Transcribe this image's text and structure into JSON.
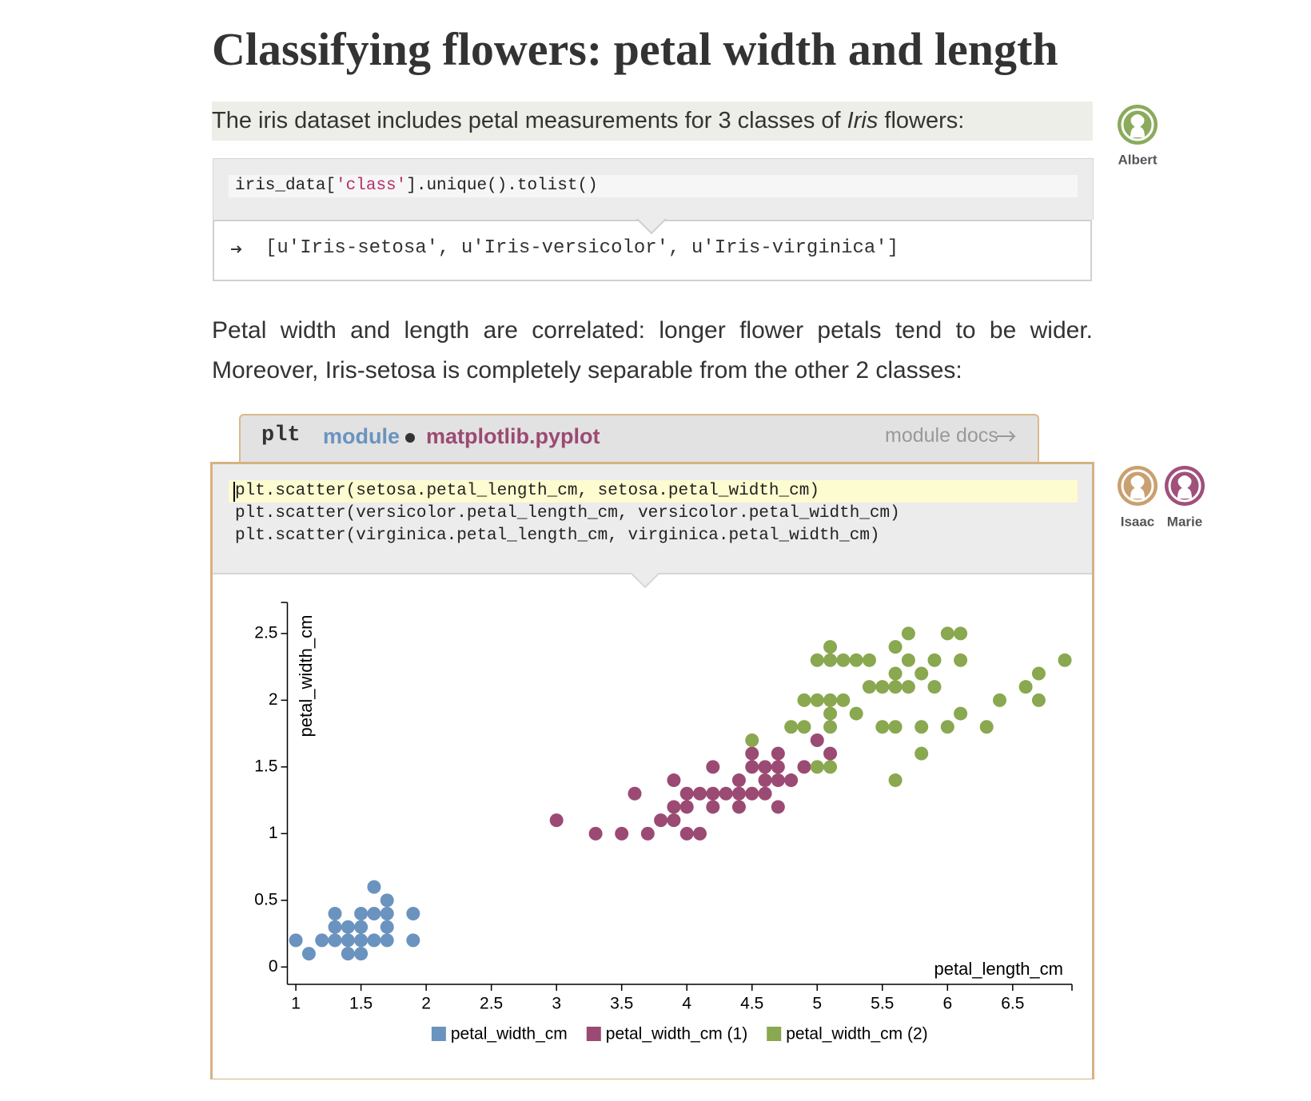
{
  "title": "Classifying flowers: petal width and length",
  "intro": {
    "before": "The iris dataset includes petal measurements for 3 classes of ",
    "emphasis": "Iris",
    "after": " flowers:"
  },
  "cell1": {
    "code": {
      "before": "iris_data[",
      "string": "'class'",
      "after": "].unique().tolist()"
    },
    "output": "[u'Iris-setosa', u'Iris-versicolor', u'Iris-virginica']"
  },
  "paragraph": "Petal width and length are correlated: longer flower petals tend to be wider. Moreover, Iris-setosa is completely separable from the other 2 classes:",
  "cell2": {
    "module_header": {
      "name": "plt",
      "kind": "module",
      "path": "matplotlib.pyplot",
      "docs": "module docs"
    },
    "code": [
      "plt.scatter(setosa.petal_length_cm, setosa.petal_width_cm)",
      "plt.scatter(versicolor.petal_length_cm, versicolor.petal_width_cm)",
      "plt.scatter(virginica.petal_length_cm, virginica.petal_width_cm)"
    ]
  },
  "collaborators": [
    {
      "name": "Albert",
      "color": "#8aab5b"
    },
    {
      "name": "Isaac",
      "color": "#c9a070"
    },
    {
      "name": "Marie",
      "color": "#a0507a"
    }
  ],
  "chart_data": {
    "type": "scatter",
    "xlabel": "petal_length_cm",
    "ylabel": "petal_width_cm",
    "xlim": [
      0.935,
      6.955
    ],
    "ylim": [
      -0.13,
      2.733
    ],
    "xticks": [
      1,
      1.5,
      2,
      2.5,
      3,
      3.5,
      4,
      4.5,
      5,
      5.5,
      6,
      6.5
    ],
    "yticks": [
      0,
      0.5,
      1,
      1.5,
      2,
      2.5
    ],
    "series": [
      {
        "name": "petal_width_cm",
        "color": "#6a93bf",
        "x": [
          1.0,
          1.1,
          1.2,
          1.3,
          1.3,
          1.3,
          1.4,
          1.4,
          1.4,
          1.5,
          1.5,
          1.5,
          1.5,
          1.6,
          1.6,
          1.6,
          1.7,
          1.7,
          1.7,
          1.7,
          1.9,
          1.9
        ],
        "values": [
          0.2,
          0.1,
          0.2,
          0.4,
          0.3,
          0.2,
          0.3,
          0.2,
          0.1,
          0.4,
          0.3,
          0.2,
          0.1,
          0.6,
          0.4,
          0.2,
          0.5,
          0.4,
          0.3,
          0.2,
          0.4,
          0.2
        ]
      },
      {
        "name": "petal_width_cm (1)",
        "color": "#9b4a73",
        "x": [
          3.0,
          3.3,
          3.5,
          3.6,
          3.7,
          3.8,
          3.9,
          3.9,
          3.9,
          4.0,
          4.0,
          4.0,
          4.1,
          4.1,
          4.2,
          4.2,
          4.2,
          4.3,
          4.4,
          4.4,
          4.4,
          4.5,
          4.5,
          4.5,
          4.6,
          4.6,
          4.6,
          4.7,
          4.7,
          4.7,
          4.7,
          4.8,
          4.9,
          5.0,
          5.1
        ],
        "values": [
          1.1,
          1.0,
          1.0,
          1.3,
          1.0,
          1.1,
          1.1,
          1.2,
          1.4,
          1.0,
          1.2,
          1.3,
          1.0,
          1.3,
          1.2,
          1.3,
          1.5,
          1.3,
          1.2,
          1.3,
          1.4,
          1.3,
          1.5,
          1.6,
          1.3,
          1.4,
          1.5,
          1.2,
          1.4,
          1.5,
          1.6,
          1.4,
          1.5,
          1.7,
          1.6
        ]
      },
      {
        "name": "petal_width_cm (2)",
        "color": "#89a84f",
        "x": [
          4.5,
          4.8,
          4.9,
          4.9,
          5.0,
          5.0,
          5.0,
          5.1,
          5.1,
          5.1,
          5.1,
          5.1,
          5.1,
          5.2,
          5.2,
          5.3,
          5.3,
          5.4,
          5.4,
          5.5,
          5.5,
          5.6,
          5.6,
          5.6,
          5.6,
          5.6,
          5.7,
          5.7,
          5.7,
          5.8,
          5.8,
          5.8,
          5.9,
          5.9,
          6.0,
          6.0,
          6.1,
          6.1,
          6.1,
          6.3,
          6.4,
          6.6,
          6.7,
          6.7,
          6.9
        ],
        "values": [
          1.7,
          1.8,
          1.8,
          2.0,
          1.5,
          2.0,
          2.3,
          1.5,
          1.8,
          1.9,
          2.0,
          2.3,
          2.4,
          2.0,
          2.3,
          1.9,
          2.3,
          2.1,
          2.3,
          1.8,
          2.1,
          1.4,
          1.8,
          2.1,
          2.2,
          2.4,
          2.1,
          2.3,
          2.5,
          1.6,
          1.8,
          2.2,
          2.1,
          2.3,
          1.8,
          2.5,
          1.9,
          2.3,
          2.5,
          1.8,
          2.0,
          2.1,
          2.0,
          2.2,
          2.3
        ]
      }
    ]
  }
}
